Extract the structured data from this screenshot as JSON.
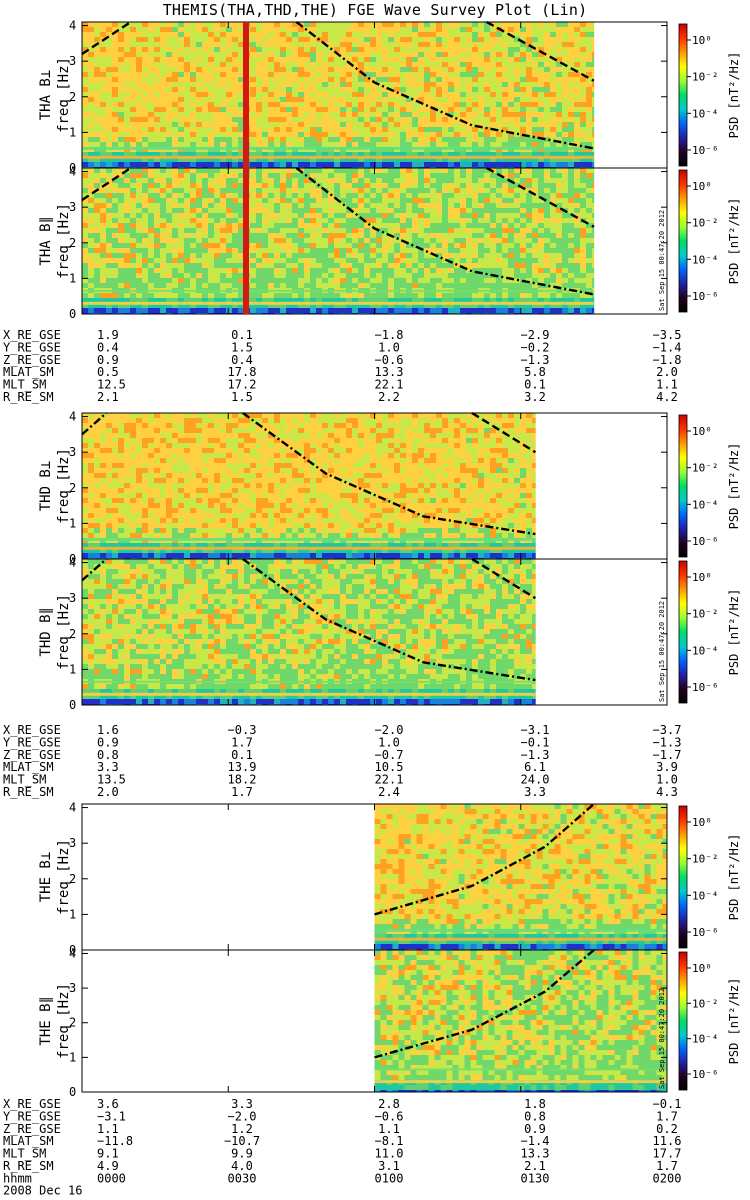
{
  "title": "THEMIS(THA,THD,THE) FGE Wave Survey Plot (Lin)",
  "stamp": "Sat Sep 15 00:47:20 2012",
  "date_label": "2008 Dec 16",
  "time_row_label": "hhmm",
  "time_ticks": [
    "0000",
    "0030",
    "0100",
    "0130",
    "0200"
  ],
  "colorbar": {
    "label": "PSD [nT²/Hz]",
    "ticks": [
      "10⁰",
      "10⁻²",
      "10⁻⁴",
      "10⁻⁶"
    ],
    "colors": [
      "#cc0000",
      "#ff3300",
      "#ff9900",
      "#ffff00",
      "#99ff33",
      "#00dd66",
      "#00cccc",
      "#0066ff",
      "#2222aa",
      "#220022",
      "#000000"
    ]
  },
  "chart_data": [
    {
      "type": "heatmap",
      "probe": "THA",
      "component": "perp",
      "title": "THA B⊥",
      "ylabel": "freq [Hz]",
      "yticks": [
        "0",
        "1",
        "2",
        "3",
        "4"
      ],
      "ylim": [
        0,
        4.1
      ],
      "xlim": [
        "0000",
        "0200"
      ],
      "data_end": "0145",
      "curves": [
        {
          "style": "dashed",
          "points": [
            [
              "0000",
              3.2
            ],
            [
              "0010",
              4.1
            ]
          ]
        },
        {
          "style": "dashdot",
          "points": [
            [
              "0044",
              4.1
            ],
            [
              "0100",
              2.4
            ],
            [
              "0120",
              1.2
            ],
            [
              "0145",
              0.55
            ]
          ]
        },
        {
          "style": "dashed",
          "points": [
            [
              "0123",
              4.1
            ],
            [
              "0145",
              2.45
            ]
          ]
        }
      ]
    },
    {
      "type": "heatmap",
      "probe": "THA",
      "component": "para",
      "title": "THA B∥",
      "ylabel": "freq [Hz]",
      "yticks": [
        "0",
        "1",
        "2",
        "3",
        "4"
      ],
      "ylim": [
        0,
        4.1
      ],
      "xlim": [
        "0000",
        "0200"
      ],
      "data_end": "0145",
      "curves": [
        {
          "style": "dashed",
          "points": [
            [
              "0000",
              3.2
            ],
            [
              "0010",
              4.1
            ]
          ]
        },
        {
          "style": "dashdot",
          "points": [
            [
              "0044",
              4.1
            ],
            [
              "0100",
              2.4
            ],
            [
              "0120",
              1.2
            ],
            [
              "0145",
              0.55
            ]
          ]
        },
        {
          "style": "dashed",
          "points": [
            [
              "0123",
              4.1
            ],
            [
              "0145",
              2.45
            ]
          ]
        }
      ]
    },
    {
      "type": "heatmap",
      "probe": "THD",
      "component": "perp",
      "title": "THD B⊥",
      "ylabel": "freq [Hz]",
      "yticks": [
        "0",
        "1",
        "2",
        "3",
        "4"
      ],
      "ylim": [
        0,
        4.1
      ],
      "xlim": [
        "0000",
        "0200"
      ],
      "data_end": "0133",
      "curves": [
        {
          "style": "dashdot",
          "points": [
            [
              "0000",
              3.5
            ],
            [
              "0005",
              4.1
            ]
          ]
        },
        {
          "style": "dashdot",
          "points": [
            [
              "0033",
              4.1
            ],
            [
              "0050",
              2.4
            ],
            [
              "0110",
              1.2
            ],
            [
              "0133",
              0.7
            ]
          ]
        },
        {
          "style": "dashed",
          "points": [
            [
              "0120",
              4.1
            ],
            [
              "0133",
              3.0
            ]
          ]
        }
      ]
    },
    {
      "type": "heatmap",
      "probe": "THD",
      "component": "para",
      "title": "THD B∥",
      "ylabel": "freq [Hz]",
      "yticks": [
        "0",
        "1",
        "2",
        "3",
        "4"
      ],
      "ylim": [
        0,
        4.1
      ],
      "xlim": [
        "0000",
        "0200"
      ],
      "data_end": "0133",
      "curves": [
        {
          "style": "dashdot",
          "points": [
            [
              "0000",
              3.5
            ],
            [
              "0005",
              4.1
            ]
          ]
        },
        {
          "style": "dashdot",
          "points": [
            [
              "0033",
              4.1
            ],
            [
              "0050",
              2.4
            ],
            [
              "0110",
              1.2
            ],
            [
              "0133",
              0.7
            ]
          ]
        },
        {
          "style": "dashed",
          "points": [
            [
              "0120",
              4.1
            ],
            [
              "0133",
              3.0
            ]
          ]
        }
      ]
    },
    {
      "type": "heatmap",
      "probe": "THE",
      "component": "perp",
      "title": "THE B⊥",
      "ylabel": "freq [Hz]",
      "yticks": [
        "0",
        "1",
        "2",
        "3",
        "4"
      ],
      "ylim": [
        0,
        4.1
      ],
      "xlim": [
        "0000",
        "0200"
      ],
      "data_start": "0100",
      "curves": [
        {
          "style": "dashdot",
          "points": [
            [
              "0100",
              1.0
            ],
            [
              "0120",
              1.8
            ],
            [
              "0135",
              2.9
            ],
            [
              "0145",
              4.1
            ]
          ]
        }
      ]
    },
    {
      "type": "heatmap",
      "probe": "THE",
      "component": "para",
      "title": "THE B∥",
      "ylabel": "freq [Hz]",
      "yticks": [
        "0",
        "1",
        "2",
        "3",
        "4"
      ],
      "ylim": [
        0,
        4.1
      ],
      "xlim": [
        "0000",
        "0200"
      ],
      "data_start": "0100",
      "curves": [
        {
          "style": "dashdot",
          "points": [
            [
              "0100",
              1.0
            ],
            [
              "0120",
              1.8
            ],
            [
              "0135",
              2.9
            ],
            [
              "0145",
              4.1
            ]
          ]
        }
      ]
    }
  ],
  "ephemeris": [
    {
      "probe": "THA",
      "rows": [
        {
          "label": "X_RE_GSE",
          "values": [
            "1.9",
            "0.1",
            "−1.8",
            "−2.9",
            "−3.5"
          ]
        },
        {
          "label": "Y_RE_GSE",
          "values": [
            "0.4",
            "1.5",
            "1.0",
            "−0.2",
            "−1.4"
          ]
        },
        {
          "label": "Z_RE_GSE",
          "values": [
            "0.9",
            "0.4",
            "−0.6",
            "−1.3",
            "−1.8"
          ]
        },
        {
          "label": "MLAT_SM",
          "values": [
            "0.5",
            "17.8",
            "13.3",
            "5.8",
            "2.0"
          ]
        },
        {
          "label": "MLT_SM",
          "values": [
            "12.5",
            "17.2",
            "22.1",
            "0.1",
            "1.1"
          ]
        },
        {
          "label": "R_RE_SM",
          "values": [
            "2.1",
            "1.5",
            "2.2",
            "3.2",
            "4.2"
          ]
        }
      ]
    },
    {
      "probe": "THD",
      "rows": [
        {
          "label": "X_RE_GSE",
          "values": [
            "1.6",
            "−0.3",
            "−2.0",
            "−3.1",
            "−3.7"
          ]
        },
        {
          "label": "Y_RE_GSE",
          "values": [
            "0.9",
            "1.7",
            "1.0",
            "−0.1",
            "−1.3"
          ]
        },
        {
          "label": "Z_RE_GSE",
          "values": [
            "0.8",
            "0.1",
            "−0.7",
            "−1.3",
            "−1.7"
          ]
        },
        {
          "label": "MLAT_SM",
          "values": [
            "3.3",
            "13.9",
            "10.5",
            "6.1",
            "3.9"
          ]
        },
        {
          "label": "MLT_SM",
          "values": [
            "13.5",
            "18.2",
            "22.1",
            "24.0",
            "1.0"
          ]
        },
        {
          "label": "R_RE_SM",
          "values": [
            "2.0",
            "1.7",
            "2.4",
            "3.3",
            "4.3"
          ]
        }
      ]
    },
    {
      "probe": "THE",
      "rows": [
        {
          "label": "X_RE_GSE",
          "values": [
            "3.6",
            "3.3",
            "2.8",
            "1.8",
            "−0.1"
          ]
        },
        {
          "label": "Y_RE_GSE",
          "values": [
            "−3.1",
            "−2.0",
            "−0.6",
            "0.8",
            "1.7"
          ]
        },
        {
          "label": "Z_RE_GSE",
          "values": [
            "1.1",
            "1.2",
            "1.1",
            "0.9",
            "0.2"
          ]
        },
        {
          "label": "MLAT_SM",
          "values": [
            "−11.8",
            "−10.7",
            "−8.1",
            "−1.4",
            "11.6"
          ]
        },
        {
          "label": "MLT_SM",
          "values": [
            "9.1",
            "9.9",
            "11.0",
            "13.3",
            "17.7"
          ]
        },
        {
          "label": "R_RE_SM",
          "values": [
            "4.9",
            "4.0",
            "3.1",
            "2.1",
            "1.7"
          ]
        }
      ]
    }
  ]
}
